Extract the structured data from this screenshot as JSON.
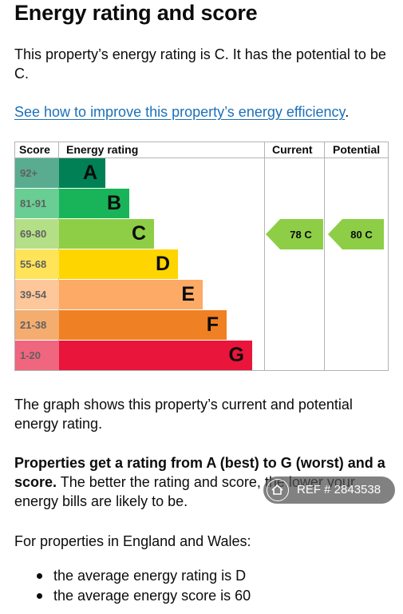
{
  "heading": "Energy rating and score",
  "intro": "This property’s energy rating is C. It has the potential to be C.",
  "improve_link": "See how to improve this property’s energy efficiency",
  "improve_link_suffix": ".",
  "chart": {
    "headers": {
      "score": "Score",
      "rating": "Energy rating",
      "current": "Current",
      "potential": "Potential"
    },
    "bands": [
      {
        "score": "92+",
        "letter": "A",
        "color": "#008054"
      },
      {
        "score": "81-91",
        "letter": "B",
        "color": "#19b459"
      },
      {
        "score": "69-80",
        "letter": "C",
        "color": "#8dce46"
      },
      {
        "score": "55-68",
        "letter": "D",
        "color": "#ffd500"
      },
      {
        "score": "39-54",
        "letter": "E",
        "color": "#fcaa65"
      },
      {
        "score": "21-38",
        "letter": "F",
        "color": "#ef8023"
      },
      {
        "score": "1-20",
        "letter": "G",
        "color": "#e9153b"
      }
    ],
    "current": {
      "value": 78,
      "letter": "C",
      "label": "78 C"
    },
    "potential": {
      "value": 80,
      "letter": "C",
      "label": "80 C"
    }
  },
  "graph_caption": "The graph shows this property’s current and potential energy rating.",
  "ratings_bold": "Properties get a rating from A (best) to G (worst) and a score.",
  "ratings_rest": " The better the rating and score, the lower your energy bills are likely to be.",
  "region_intro": "For properties in England and Wales:",
  "bullets": [
    "the average energy rating is D",
    "the average energy score is 60"
  ],
  "badge": {
    "text": "REF # 2843538",
    "icon": "home-icon"
  }
}
